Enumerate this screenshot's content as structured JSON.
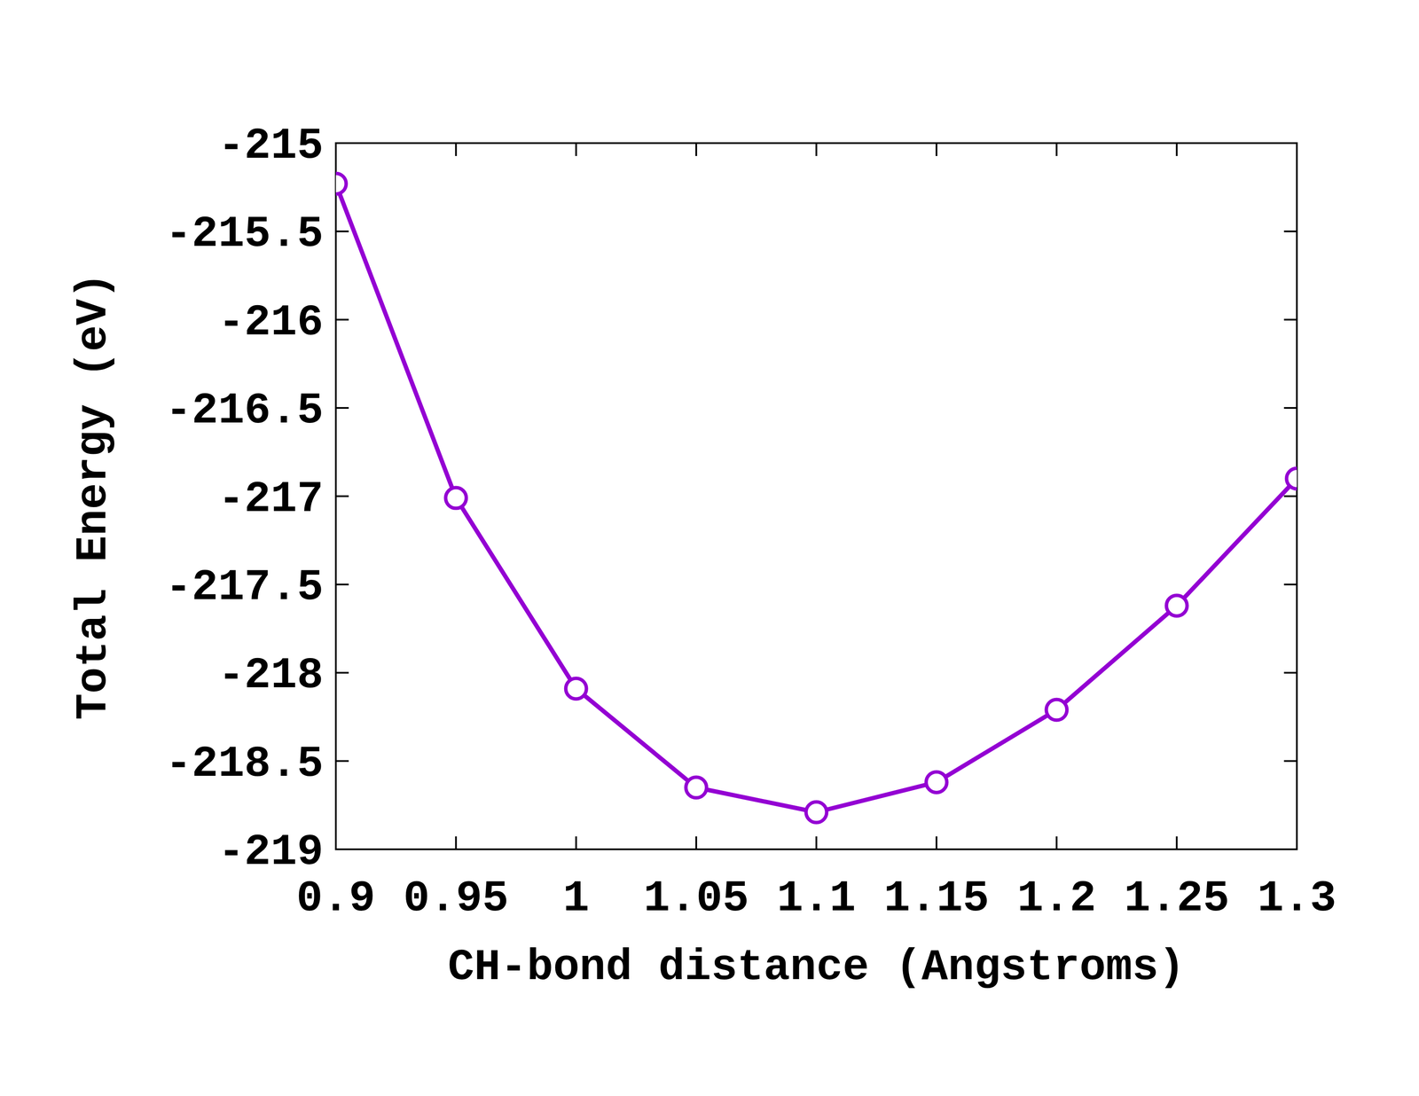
{
  "chart_data": {
    "type": "line",
    "x_label": "CH-bond distance (Angstroms)",
    "y_label": "Total Energy (eV)",
    "x": [
      0.9,
      0.95,
      1,
      1.05,
      1.1,
      1.15,
      1.2,
      1.25,
      1.3
    ],
    "series": [
      {
        "values": [
          -215.23,
          -217.01,
          -218.09,
          -218.65,
          -218.79,
          -218.62,
          -218.21,
          -217.62,
          -216.9
        ],
        "color": "#9400d3",
        "marker": "open-circle",
        "line_style": "solid"
      }
    ],
    "xlim": [
      0.9,
      1.3
    ],
    "xticks": [
      0.9,
      0.95,
      1,
      1.05,
      1.1,
      1.15,
      1.2,
      1.25,
      1.3
    ],
    "ylim": [
      -219,
      -215
    ],
    "yticks": [
      -219,
      -218.5,
      -218,
      -217.5,
      -217,
      -216.5,
      -216,
      -215.5,
      -215
    ],
    "grid": false
  }
}
